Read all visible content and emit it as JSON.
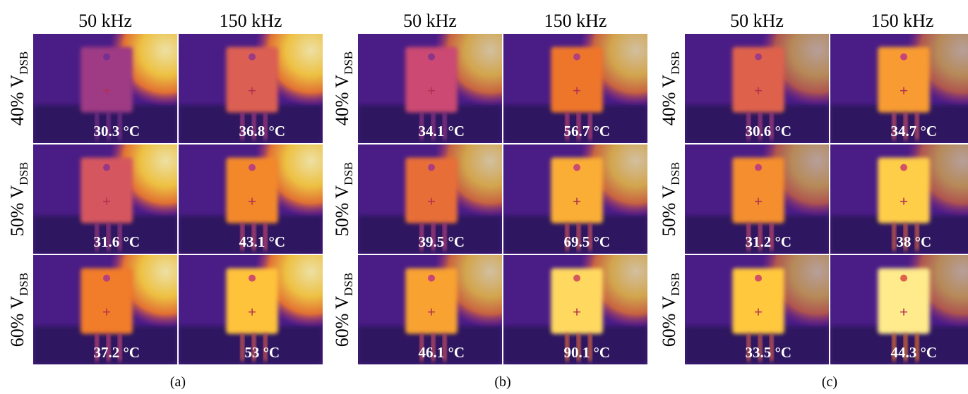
{
  "panels": [
    {
      "label": "(a)",
      "columns": [
        "50 kHz",
        "150 kHz"
      ],
      "rows": [
        {
          "label": {
            "text": "40% V",
            "sub": "DSB"
          },
          "temps": [
            "30.3 °C",
            "36.8 °C"
          ]
        },
        {
          "label": {
            "text": "50% V",
            "sub": "DSB"
          },
          "temps": [
            "31.6 °C",
            "43.1 °C"
          ]
        },
        {
          "label": {
            "text": "60% V",
            "sub": "DSB"
          },
          "temps": [
            "37.2 °C",
            "53 °C"
          ]
        }
      ]
    },
    {
      "label": "(b)",
      "columns": [
        "50 kHz",
        "150 kHz"
      ],
      "rows": [
        {
          "label": {
            "text": "40% V",
            "sub": "DSB"
          },
          "temps": [
            "34.1 °C",
            "56.7 °C"
          ]
        },
        {
          "label": {
            "text": "50% V",
            "sub": "DSB"
          },
          "temps": [
            "39.5 °C",
            "69.5 °C"
          ]
        },
        {
          "label": {
            "text": "60% V",
            "sub": "DSB"
          },
          "temps": [
            "46.1 °C",
            "90.1 °C"
          ]
        }
      ]
    },
    {
      "label": "(c)",
      "columns": [
        "50 kHz",
        "150 kHz"
      ],
      "rows": [
        {
          "label": {
            "text": "40% V",
            "sub": "DSB"
          },
          "temps": [
            "30.6 °C",
            "34.7 °C"
          ]
        },
        {
          "label": {
            "text": "50% V",
            "sub": "DSB"
          },
          "temps": [
            "31.2 °C",
            "38 °C"
          ]
        },
        {
          "label": {
            "text": "60% V",
            "sub": "DSB"
          },
          "temps": [
            "33.5 °C",
            "44.3 °C"
          ]
        }
      ]
    }
  ]
}
